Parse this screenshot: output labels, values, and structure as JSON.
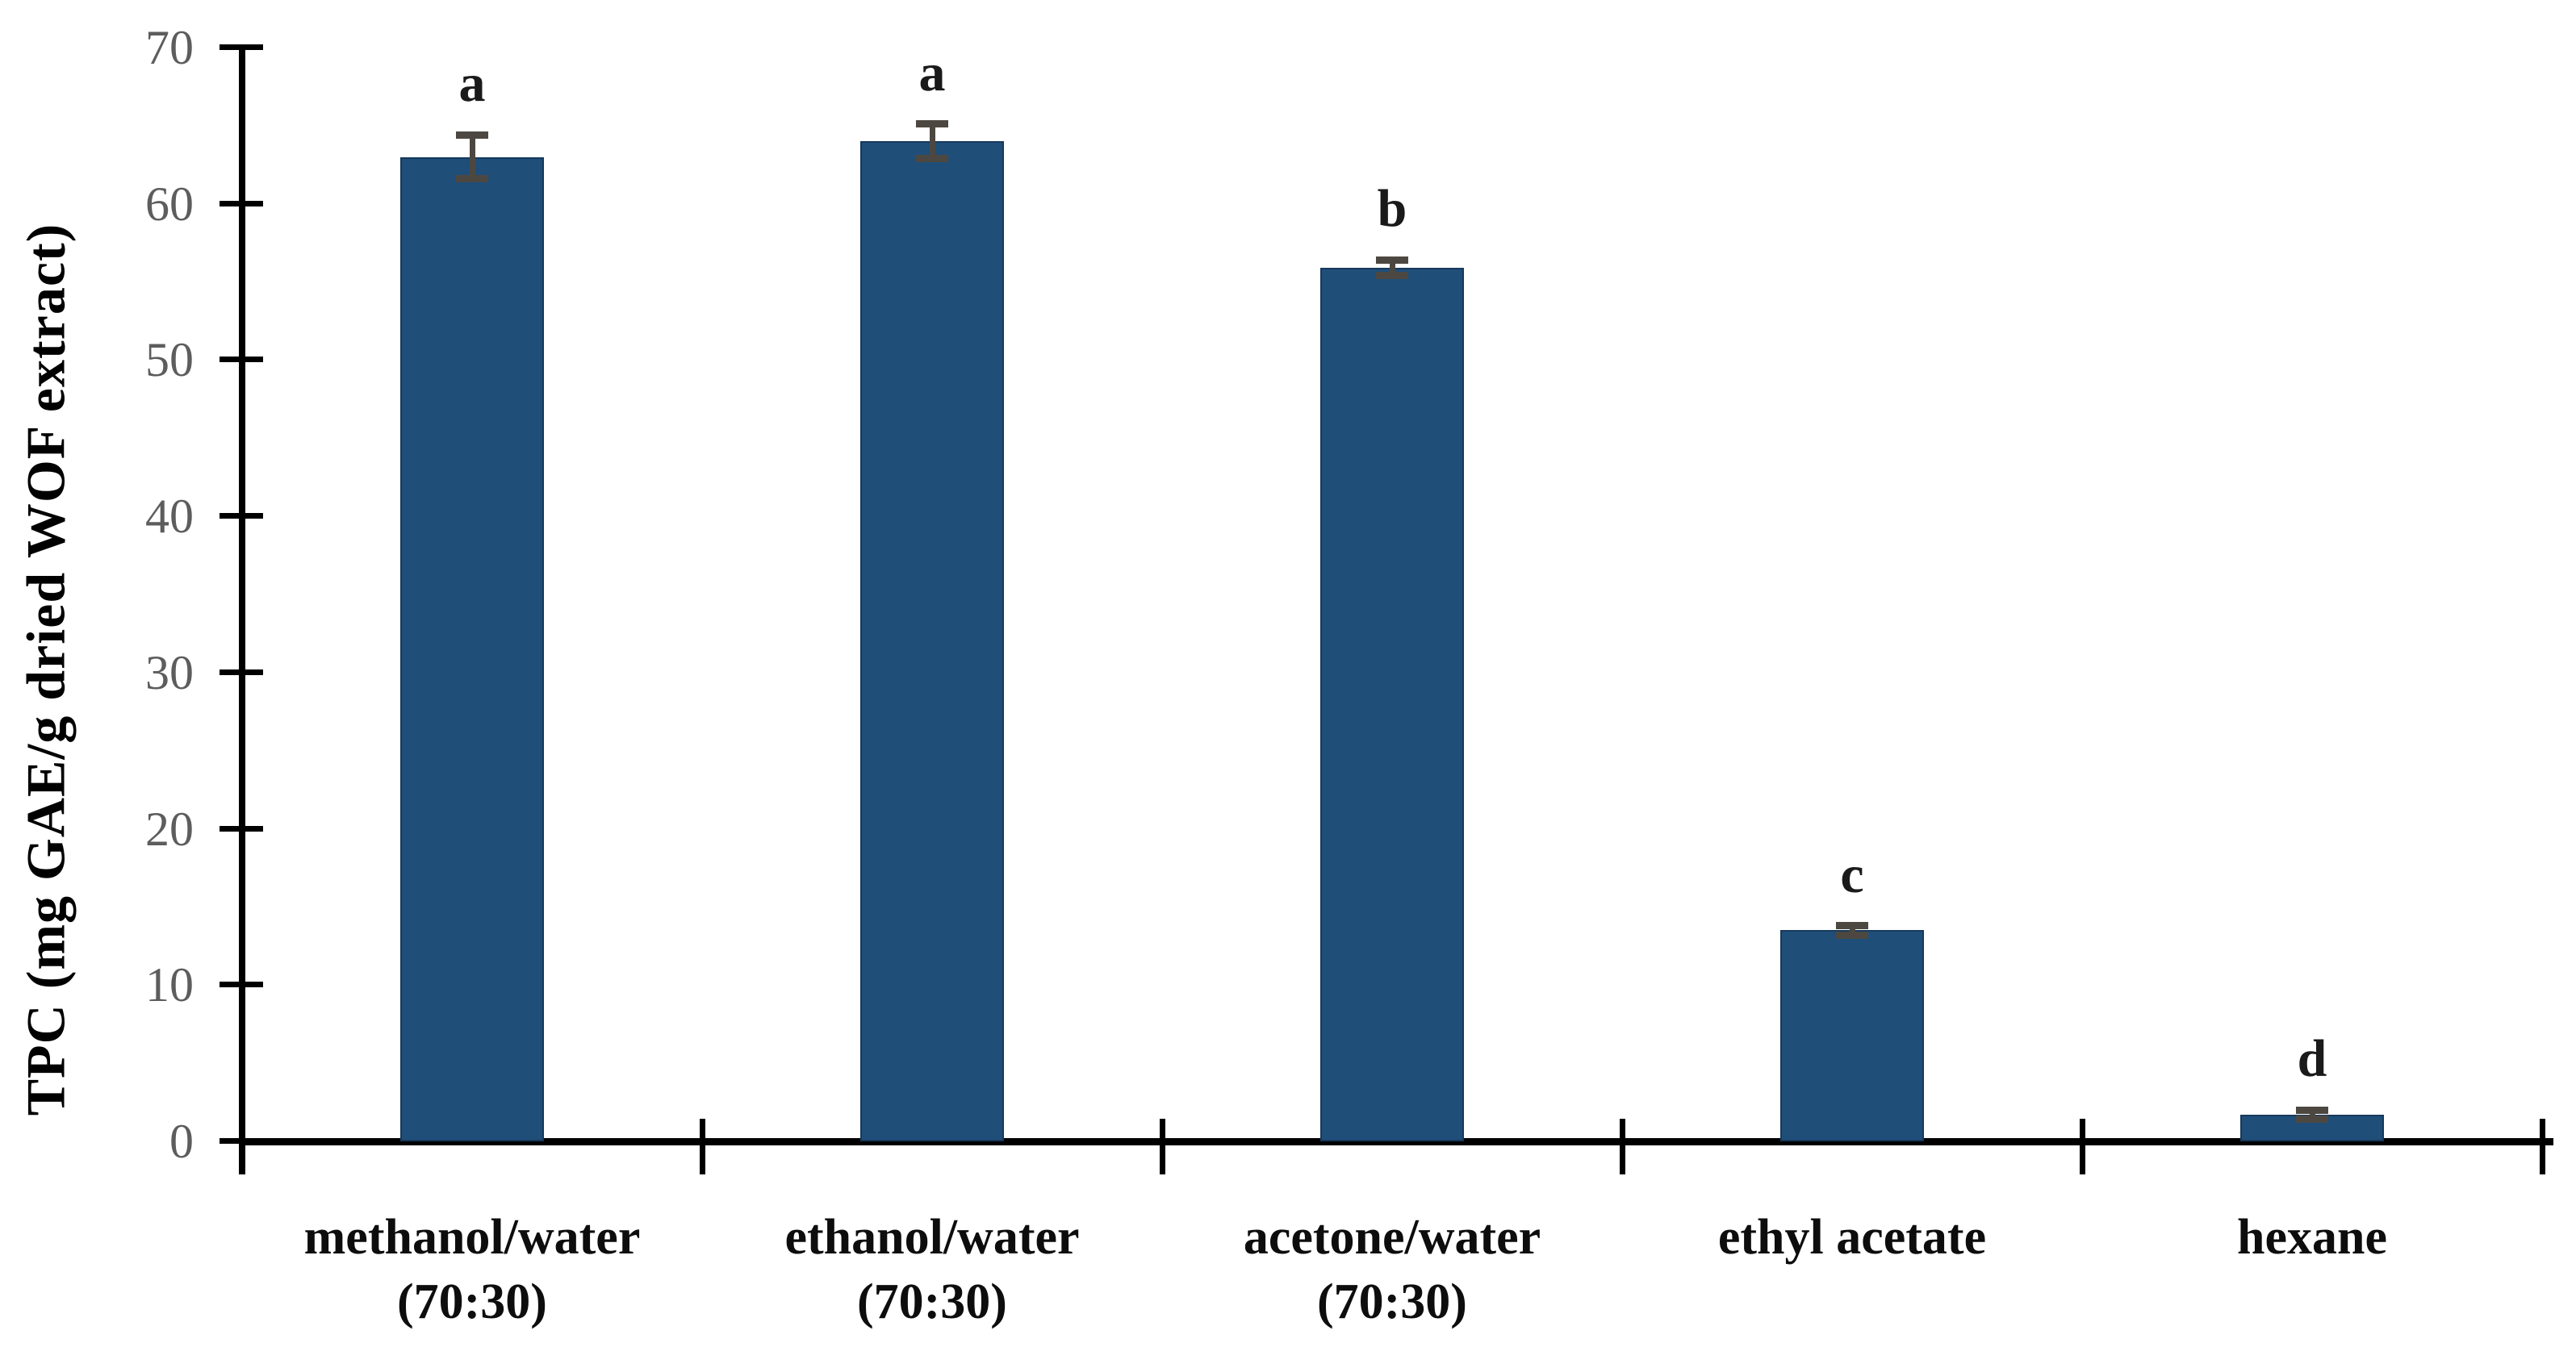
{
  "chart_data": {
    "type": "bar",
    "title": "",
    "xlabel": "",
    "ylabel": "TPC (mg GAE/g dried WOF extract)",
    "ylim": [
      0,
      70
    ],
    "yticks": [
      0,
      10,
      20,
      30,
      40,
      50,
      60,
      70
    ],
    "grid": false,
    "legend": false,
    "categories": [
      "methanol/water\n(70:30)",
      "ethanol/water\n(70:30)",
      "acetone/water\n(70:30)",
      "ethyl acetate",
      "hexane"
    ],
    "series": [
      {
        "name": "TPC",
        "values": [
          63.0,
          64.0,
          55.9,
          13.5,
          1.7
        ],
        "errors": [
          1.4,
          1.1,
          0.5,
          0.3,
          0.3
        ]
      }
    ],
    "significance_letters": [
      "a",
      "a",
      "b",
      "c",
      "d"
    ],
    "colors": {
      "bar_fill": "#1F4E79",
      "bar_border": "#17395C",
      "error_bar": "#4c4841",
      "axis": "#000000",
      "tick_label": "#5d5d5d",
      "category_label": "#0d0d0d",
      "letter": "#1a1a1a",
      "background": "#ffffff"
    }
  }
}
